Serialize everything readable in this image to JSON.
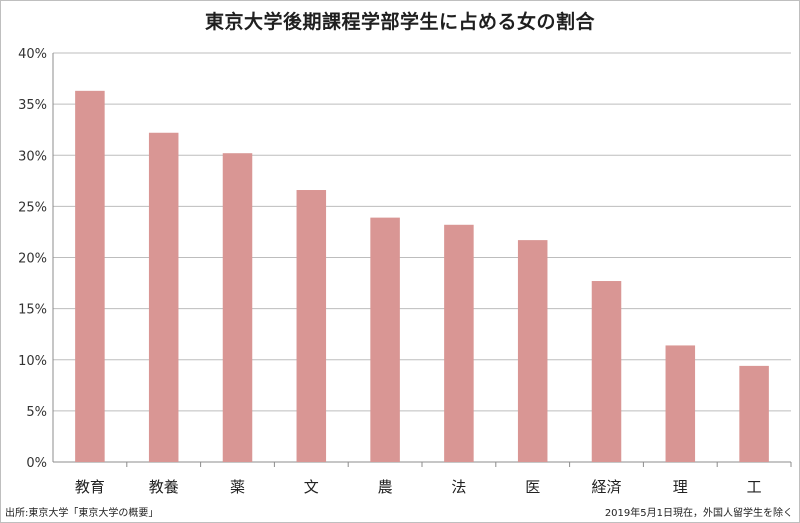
{
  "chart_data": {
    "type": "bar",
    "title": "東京大学後期課程学部学生に占める女の割合",
    "categories": [
      "教育",
      "教養",
      "薬",
      "文",
      "農",
      "法",
      "医",
      "経済",
      "理",
      "工"
    ],
    "values": [
      36.3,
      32.2,
      30.2,
      26.6,
      23.9,
      23.2,
      21.7,
      17.7,
      11.4,
      9.4
    ],
    "ylim": [
      0,
      40
    ],
    "yticks": [
      0,
      5,
      10,
      15,
      20,
      25,
      30,
      35,
      40
    ],
    "ytick_suffix": "%",
    "xlabel": "",
    "ylabel": "",
    "grid": true,
    "bar_color": "#d99694",
    "source_note": "出所:東京大学「東京大学の概要」",
    "date_note": "2019年5月1日現在，外国人留学生を除く"
  }
}
